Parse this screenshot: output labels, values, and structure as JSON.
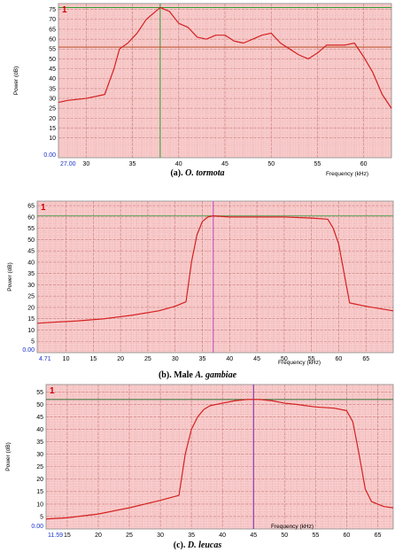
{
  "chart_data": [
    {
      "type": "line",
      "badge": "1",
      "caption_prefix": "(a). ",
      "caption_species": "O. tormota",
      "xlabel": "Frequency (kHz)",
      "ylabel": "Power (dB)",
      "xlim": [
        27,
        63
      ],
      "ylim": [
        0,
        78
      ],
      "x_ticks": [
        30,
        35,
        40,
        45,
        50,
        55,
        60
      ],
      "y_ticks": [
        10,
        15,
        20,
        25,
        30,
        35,
        40,
        45,
        50,
        55,
        60,
        65,
        70,
        75
      ],
      "x_start_label": "27.00",
      "y_start_label": "0.00",
      "cursor_x": 38,
      "cursor_y": 56,
      "peak_line_y": 76,
      "series": [
        {
          "x": [
            27,
            28,
            30,
            32,
            33,
            33.6,
            34.5,
            35.5,
            36.5,
            37.5,
            38,
            39,
            40,
            41,
            42,
            43,
            44,
            45,
            46,
            47,
            48,
            49,
            50,
            51,
            52,
            53,
            54,
            55,
            56,
            57,
            58,
            59,
            60,
            61,
            62,
            63
          ],
          "y": [
            28,
            29,
            30,
            32,
            45,
            55,
            58,
            63,
            70,
            74,
            76,
            74,
            68,
            66,
            61,
            60,
            62,
            62,
            59,
            58,
            60,
            62,
            63,
            58,
            55,
            52,
            50,
            53,
            57,
            57,
            57,
            58,
            51,
            43,
            32,
            25
          ]
        }
      ]
    },
    {
      "type": "line",
      "badge": "1",
      "caption_prefix": "(b). Male ",
      "caption_species": "A. gambiae",
      "xlabel": "Frequency (kHz)",
      "ylabel": "Power (dB)",
      "xlim": [
        4.71,
        70
      ],
      "ylim": [
        0,
        67
      ],
      "x_ticks": [
        10,
        15,
        20,
        25,
        30,
        35,
        40,
        45,
        50,
        55,
        60,
        65
      ],
      "y_ticks": [
        5,
        10,
        15,
        20,
        25,
        30,
        35,
        40,
        45,
        50,
        55,
        60,
        65
      ],
      "x_start_label": "4.71",
      "y_start_label": "0.00",
      "cursor_x": 37,
      "cursor_y": 60.5,
      "series": [
        {
          "x": [
            4.71,
            8,
            12,
            17,
            22,
            27,
            30,
            32,
            33,
            34,
            35,
            36,
            37,
            40,
            45,
            50,
            55,
            58,
            59,
            60,
            61,
            62,
            65,
            70
          ],
          "y": [
            13,
            13.5,
            14,
            15,
            16.5,
            18.5,
            20.5,
            22.5,
            40,
            52,
            58,
            60,
            60.5,
            60,
            60,
            60,
            59.5,
            59,
            55,
            48,
            35,
            22,
            20.5,
            18.5
          ]
        }
      ]
    },
    {
      "type": "line",
      "badge": "1",
      "caption_prefix": "(c). ",
      "caption_species": "D. leucas",
      "xlabel": "Frequency (kHz)",
      "ylabel": "Power (dB)",
      "xlim": [
        11.59,
        67.5
      ],
      "ylim": [
        0,
        58
      ],
      "x_ticks": [
        15,
        20,
        25,
        30,
        35,
        40,
        45,
        50,
        55,
        60,
        65
      ],
      "y_ticks": [
        5,
        10,
        15,
        20,
        25,
        30,
        35,
        40,
        45,
        50,
        55
      ],
      "x_start_label": "11.59",
      "y_start_label": "0.00",
      "cursor_x": 45,
      "cursor_y": 52,
      "series": [
        {
          "x": [
            11.59,
            15,
            20,
            25,
            30,
            33,
            34,
            35,
            36,
            37,
            38,
            40,
            42,
            44,
            46,
            48,
            50,
            52,
            55,
            58,
            60,
            61,
            62,
            63,
            64,
            65,
            66,
            67.5
          ],
          "y": [
            4,
            4.5,
            6,
            8.5,
            11.5,
            13.5,
            30,
            40,
            45,
            48,
            49.5,
            50.5,
            51.5,
            52,
            52,
            51.5,
            50.5,
            50,
            49,
            48.5,
            47.5,
            43,
            30,
            16,
            11,
            10,
            9,
            8.5
          ]
        }
      ]
    }
  ]
}
